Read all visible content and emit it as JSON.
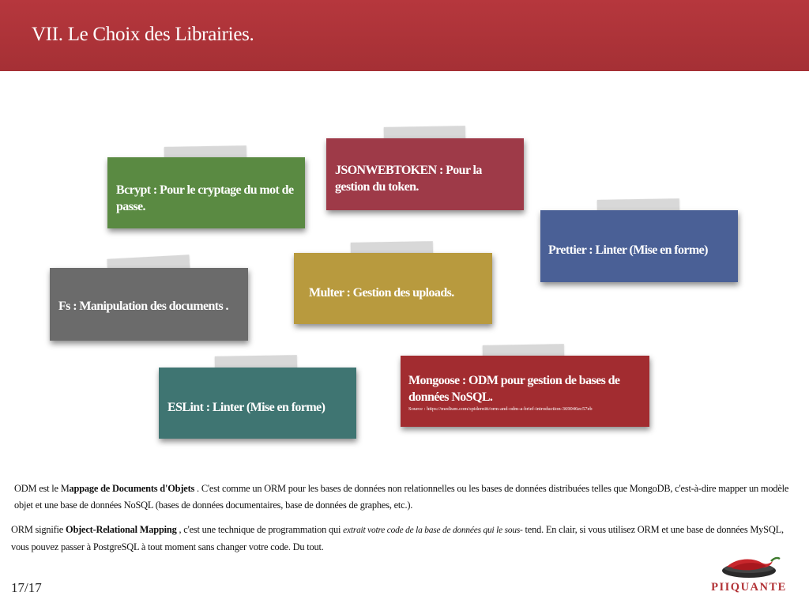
{
  "header": {
    "title": "VII. Le Choix des Librairies.",
    "color": "#ab3238"
  },
  "notes": [
    {
      "id": "bcrypt",
      "text": "Bcrypt : Pour le cryptage du mot de passe.",
      "color": "#5a8a42"
    },
    {
      "id": "jsonwebtoken",
      "text": "JSONWEBTOKEN : Pour la gestion du token.",
      "color": "#9e3a48"
    },
    {
      "id": "prettier",
      "text": "Prettier : Linter (Mise en forme)",
      "color": "#4a6096"
    },
    {
      "id": "fs",
      "text": "Fs :  Manipulation des documents .",
      "color": "#6b6b6b"
    },
    {
      "id": "multer",
      "text": "Multer :  Gestion des uploads.",
      "color": "#b89a3e"
    },
    {
      "id": "eslint",
      "text": "ESLint : Linter (Mise en forme)",
      "color": "#3f7572"
    },
    {
      "id": "mongoose",
      "text": "Mongoose :  ODM pour gestion de bases de données NoSQL.",
      "source": "Source : https://medium.com/spidernitt/orm-and-odm-a-brief-introduction-369046ec57eb",
      "color": "#a22c30"
    }
  ],
  "paragraphs": {
    "odm": {
      "p1": "ODM est le M",
      "b1": "appage de Documents d'Objets",
      "p2": " . C'est comme un ORM pour les bases de données non relationnelles ou les bases de données distribuées telles que MongoDB, c'est-à-dire mapper un modèle objet et une base de données NoSQL (bases de données documentaires, base de données de graphes, etc.)."
    },
    "orm": {
      "p1": "ORM signifie ",
      "b1": "Object-Relational Mapping",
      "p2": " , c'est une technique de programmation qui ",
      "i1": "extrait votre code de la base de données qui le sous-",
      "p3": " tend. En clair, si vous utilisez ORM et une base de données MySQL, vous pouvez passer à PostgreSQL à tout moment sans changer votre code. Du tout."
    }
  },
  "footer": {
    "page": "17/17",
    "logo_text": "PIIQUANTE"
  }
}
